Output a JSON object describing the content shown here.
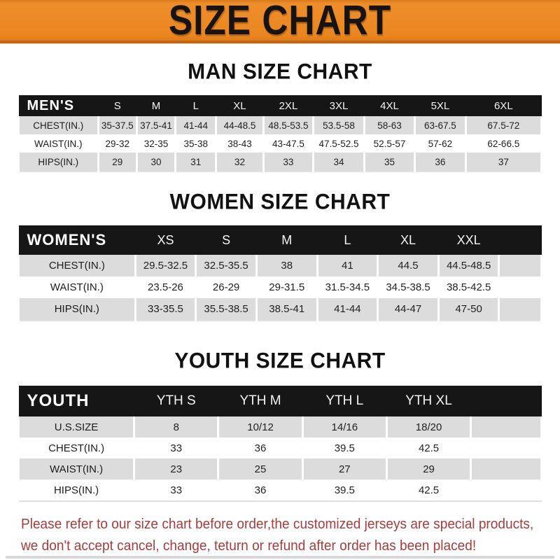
{
  "banner": {
    "title": "SIZE CHART"
  },
  "colors": {
    "banner_orange": "#E9861F",
    "banner_edge_dark": "#C06716",
    "header_bar_black": "#161616",
    "row_gray": "#DCDCDC",
    "disclaimer_red": "#A63C3C"
  },
  "sections": [
    {
      "heading": "MAN SIZE CHART",
      "table": {
        "corner_label": "MEN'S",
        "columns": [
          "S",
          "M",
          "L",
          "XL",
          "2XL",
          "3XL",
          "4XL",
          "5XL",
          "6XL"
        ],
        "rows": [
          {
            "label": "CHEST(IN.)",
            "values": [
              "35-37.5",
              "37.5-41",
              "41-44",
              "44-48.5",
              "48.5-53.5",
              "53.5-58",
              "58-63",
              "63-67.5",
              "67.5-72"
            ]
          },
          {
            "label": "WAIST(IN.)",
            "values": [
              "29-32",
              "32-35",
              "35-38",
              "38-43",
              "43-47.5",
              "47.5-52.5",
              "52.5-57",
              "57-62",
              "62-66.5"
            ]
          },
          {
            "label": "HIPS(IN.)",
            "values": [
              "29",
              "30",
              "31",
              "32",
              "33",
              "34",
              "35",
              "36",
              "37"
            ]
          }
        ]
      }
    },
    {
      "heading": "WOMEN SIZE CHART",
      "table": {
        "corner_label": "WOMEN'S",
        "columns": [
          "XS",
          "S",
          "M",
          "L",
          "XL",
          "XXL"
        ],
        "rows": [
          {
            "label": "CHEST(IN.)",
            "values": [
              "29.5-32.5",
              "32.5-35.5",
              "38",
              "41",
              "44.5",
              "44.5-48.5"
            ]
          },
          {
            "label": "WAIST(IN.)",
            "values": [
              "23.5-26",
              "26-29",
              "29-31.5",
              "31.5-34.5",
              "34.5-38.5",
              "38.5-42.5"
            ]
          },
          {
            "label": "HIPS(IN.)",
            "values": [
              "33-35.5",
              "35.5-38.5",
              "38.5-41",
              "41-44",
              "44-47",
              "47-50"
            ]
          }
        ]
      }
    },
    {
      "heading": "YOUTH SIZE CHART",
      "table": {
        "corner_label": "YOUTH",
        "columns": [
          "YTH S",
          "YTH M",
          "YTH L",
          "YTH XL"
        ],
        "rows": [
          {
            "label": "U.S.SIZE",
            "values": [
              "8",
              "10/12",
              "14/16",
              "18/20"
            ]
          },
          {
            "label": "CHEST(IN.)",
            "values": [
              "33",
              "36",
              "39.5",
              "42.5"
            ]
          },
          {
            "label": "WAIST(IN.)",
            "values": [
              "23",
              "25",
              "27",
              "29"
            ]
          },
          {
            "label": "HIPS(IN.)",
            "values": [
              "33",
              "36",
              "39.5",
              "42.5"
            ]
          }
        ]
      }
    }
  ],
  "disclaimer": {
    "line1": "Please refer to our size chart before order,the customized jerseys are special products,",
    "line2": "we don't accept cancel, change, teturn or refund after order has been placed!"
  }
}
